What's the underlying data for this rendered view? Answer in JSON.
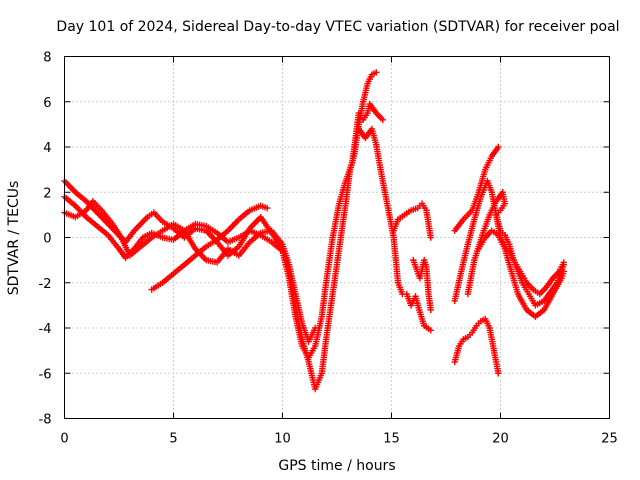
{
  "chart_data": {
    "type": "scatter",
    "title": "Day 101 of 2024, Sidereal Day-to-day VTEC variation (SDTVAR) for receiver poal",
    "xlabel": "GPS time / hours",
    "ylabel": "SDTVAR / TECUs",
    "xlim": [
      0,
      25
    ],
    "ylim": [
      -8,
      8
    ],
    "xticks": [
      0,
      5,
      10,
      15,
      20,
      25
    ],
    "yticks": [
      -8,
      -6,
      -4,
      -2,
      0,
      2,
      4,
      6,
      8
    ],
    "grid": true,
    "marker": "+",
    "color": "#ff0000",
    "series": [
      {
        "name": "trace-1",
        "points": [
          [
            0,
            2.5
          ],
          [
            0.5,
            2.0
          ],
          [
            1.0,
            1.6
          ],
          [
            1.5,
            1.1
          ],
          [
            2.0,
            0.6
          ],
          [
            2.5,
            0.1
          ],
          [
            2.8,
            -0.2
          ],
          [
            3.2,
            0.3
          ],
          [
            3.8,
            0.9
          ],
          [
            4.1,
            1.1
          ],
          [
            4.5,
            0.7
          ],
          [
            5.0,
            0.4
          ],
          [
            5.5,
            0.0
          ],
          [
            6.0,
            0.4
          ],
          [
            6.5,
            0.3
          ],
          [
            7.0,
            -0.2
          ],
          [
            7.5,
            -0.8
          ],
          [
            8.0,
            -0.4
          ],
          [
            8.5,
            0.4
          ],
          [
            9.0,
            0.9
          ],
          [
            9.5,
            0.2
          ],
          [
            10.0,
            -0.5
          ],
          [
            10.3,
            -1.5
          ],
          [
            10.6,
            -3.0
          ],
          [
            10.9,
            -4.5
          ],
          [
            11.2,
            -5.5
          ],
          [
            11.5,
            -6.7
          ],
          [
            11.8,
            -6.0
          ],
          [
            12.0,
            -4.5
          ],
          [
            12.3,
            -2.5
          ],
          [
            12.6,
            -0.5
          ],
          [
            12.9,
            1.5
          ],
          [
            13.1,
            3.0
          ],
          [
            13.3,
            3.7
          ],
          [
            13.5,
            5.0
          ],
          [
            13.7,
            6.0
          ],
          [
            13.9,
            6.8
          ],
          [
            14.1,
            7.2
          ],
          [
            14.3,
            7.3
          ]
        ]
      },
      {
        "name": "trace-2",
        "points": [
          [
            0,
            1.8
          ],
          [
            0.5,
            1.4
          ],
          [
            1.0,
            0.9
          ],
          [
            1.5,
            0.5
          ],
          [
            2.0,
            0.1
          ],
          [
            2.5,
            -0.5
          ],
          [
            2.8,
            -0.9
          ],
          [
            3.2,
            -0.5
          ],
          [
            3.6,
            0.0
          ],
          [
            4.0,
            0.2
          ],
          [
            4.5,
            0.0
          ],
          [
            5.0,
            -0.1
          ],
          [
            5.5,
            0.3
          ],
          [
            6.0,
            0.6
          ],
          [
            6.5,
            0.5
          ],
          [
            7.0,
            0.2
          ],
          [
            7.5,
            -0.2
          ],
          [
            8.0,
            0.0
          ],
          [
            8.5,
            0.3
          ],
          [
            9.0,
            0.1
          ],
          [
            9.5,
            -0.2
          ],
          [
            10.0,
            -0.6
          ],
          [
            10.3,
            -1.8
          ],
          [
            10.6,
            -3.5
          ],
          [
            10.9,
            -4.8
          ],
          [
            11.2,
            -5.3
          ],
          [
            11.5,
            -4.8
          ],
          [
            11.8,
            -3.5
          ],
          [
            12.0,
            -2.0
          ],
          [
            12.3,
            0.0
          ],
          [
            12.6,
            1.5
          ],
          [
            12.9,
            2.5
          ],
          [
            13.2,
            3.3
          ],
          [
            13.5,
            5.5
          ],
          [
            13.7,
            5.2
          ],
          [
            13.9,
            5.5
          ],
          [
            14.0,
            5.9
          ],
          [
            14.3,
            5.5
          ],
          [
            14.6,
            5.2
          ]
        ]
      },
      {
        "name": "trace-3",
        "points": [
          [
            0,
            1.1
          ],
          [
            0.5,
            0.9
          ],
          [
            1.0,
            1.2
          ],
          [
            1.3,
            1.6
          ],
          [
            1.7,
            1.2
          ],
          [
            2.2,
            0.6
          ],
          [
            2.6,
            0.0
          ],
          [
            3.0,
            -0.8
          ],
          [
            3.5,
            -0.4
          ],
          [
            4.0,
            0.0
          ],
          [
            4.5,
            0.3
          ],
          [
            5.0,
            0.6
          ],
          [
            5.5,
            0.3
          ],
          [
            6.0,
            -0.5
          ],
          [
            6.5,
            -1.0
          ],
          [
            7.0,
            -1.1
          ],
          [
            7.5,
            -0.5
          ],
          [
            8.0,
            -0.8
          ],
          [
            8.5,
            -0.2
          ],
          [
            9.0,
            0.2
          ],
          [
            9.5,
            0.3
          ],
          [
            10.0,
            -0.3
          ],
          [
            10.3,
            -1.2
          ],
          [
            10.6,
            -2.5
          ],
          [
            10.9,
            -3.8
          ],
          [
            11.2,
            -4.6
          ],
          [
            11.5,
            -4.0
          ]
        ]
      },
      {
        "name": "trace-4",
        "points": [
          [
            4.0,
            -2.3
          ],
          [
            4.5,
            -2.0
          ],
          [
            5.0,
            -1.6
          ],
          [
            5.5,
            -1.2
          ],
          [
            6.0,
            -0.8
          ],
          [
            6.5,
            -0.4
          ],
          [
            7.0,
            -0.1
          ],
          [
            7.5,
            0.3
          ],
          [
            8.0,
            0.8
          ],
          [
            8.5,
            1.2
          ],
          [
            9.0,
            1.4
          ],
          [
            9.3,
            1.3
          ]
        ]
      },
      {
        "name": "trace-5",
        "points": [
          [
            13.5,
            4.8
          ],
          [
            13.8,
            4.4
          ],
          [
            14.1,
            4.8
          ],
          [
            14.3,
            4.1
          ],
          [
            14.5,
            3.0
          ],
          [
            14.7,
            2.0
          ],
          [
            14.9,
            1.0
          ],
          [
            15.1,
            0.0
          ],
          [
            15.2,
            -1.0
          ],
          [
            15.3,
            -2.0
          ],
          [
            15.5,
            -2.5
          ],
          [
            15.7,
            -2.5
          ],
          [
            15.9,
            -3.0
          ],
          [
            16.1,
            -2.6
          ],
          [
            16.3,
            -3.3
          ],
          [
            16.5,
            -3.9
          ],
          [
            16.8,
            -4.1
          ]
        ]
      },
      {
        "name": "trace-6",
        "points": [
          [
            15.1,
            0.3
          ],
          [
            15.3,
            0.8
          ],
          [
            15.6,
            1.0
          ],
          [
            15.9,
            1.2
          ],
          [
            16.2,
            1.3
          ],
          [
            16.4,
            1.5
          ],
          [
            16.6,
            1.2
          ],
          [
            16.8,
            0.0
          ]
        ]
      },
      {
        "name": "trace-7",
        "points": [
          [
            16.0,
            -1.0
          ],
          [
            16.3,
            -1.8
          ],
          [
            16.5,
            -1.0
          ],
          [
            16.6,
            -1.3
          ],
          [
            16.7,
            -2.5
          ],
          [
            16.8,
            -3.2
          ]
        ]
      },
      {
        "name": "trace-8",
        "points": [
          [
            17.9,
            0.3
          ],
          [
            18.3,
            0.8
          ],
          [
            18.7,
            1.2
          ],
          [
            19.0,
            2.0
          ],
          [
            19.3,
            3.0
          ],
          [
            19.6,
            3.6
          ],
          [
            19.9,
            4.0
          ]
        ]
      },
      {
        "name": "trace-9",
        "points": [
          [
            17.9,
            -2.8
          ],
          [
            18.2,
            -1.5
          ],
          [
            18.5,
            -0.3
          ],
          [
            18.8,
            0.8
          ],
          [
            19.1,
            1.8
          ],
          [
            19.4,
            2.5
          ],
          [
            19.6,
            2.0
          ],
          [
            19.8,
            1.0
          ],
          [
            20.0,
            0.3
          ],
          [
            20.2,
            0.1
          ],
          [
            20.4,
            -0.3
          ],
          [
            20.6,
            -1.0
          ],
          [
            20.8,
            -1.5
          ],
          [
            21.0,
            -2.0
          ],
          [
            21.3,
            -2.5
          ],
          [
            21.6,
            -3.0
          ],
          [
            22.0,
            -2.8
          ],
          [
            22.3,
            -2.4
          ],
          [
            22.6,
            -2.0
          ],
          [
            22.9,
            -1.2
          ]
        ]
      },
      {
        "name": "trace-10",
        "points": [
          [
            17.9,
            -5.5
          ],
          [
            18.1,
            -4.8
          ],
          [
            18.3,
            -4.5
          ],
          [
            18.5,
            -4.4
          ],
          [
            18.7,
            -4.2
          ],
          [
            18.9,
            -3.9
          ],
          [
            19.1,
            -3.7
          ],
          [
            19.3,
            -3.6
          ],
          [
            19.5,
            -4.0
          ],
          [
            19.7,
            -5.0
          ],
          [
            19.9,
            -6.0
          ]
        ]
      },
      {
        "name": "trace-11",
        "points": [
          [
            18.5,
            -2.5
          ],
          [
            18.8,
            -1.0
          ],
          [
            19.2,
            0.2
          ],
          [
            19.5,
            1.0
          ],
          [
            19.8,
            1.6
          ],
          [
            20.1,
            2.0
          ],
          [
            20.2,
            1.5
          ],
          [
            20.0,
            1.2
          ],
          [
            19.8,
            1.0
          ],
          [
            20.0,
            0.0
          ],
          [
            20.3,
            -0.5
          ],
          [
            20.6,
            -1.0
          ],
          [
            20.9,
            -1.5
          ],
          [
            21.2,
            -2.0
          ],
          [
            21.5,
            -2.3
          ],
          [
            21.8,
            -2.5
          ],
          [
            22.1,
            -2.2
          ],
          [
            22.4,
            -1.8
          ],
          [
            22.7,
            -1.5
          ],
          [
            22.9,
            -1.1
          ]
        ]
      },
      {
        "name": "trace-12",
        "points": [
          [
            19.0,
            -0.5
          ],
          [
            19.3,
            0.0
          ],
          [
            19.6,
            0.3
          ],
          [
            19.9,
            0.1
          ],
          [
            20.2,
            -0.5
          ],
          [
            20.5,
            -1.5
          ],
          [
            20.8,
            -2.5
          ],
          [
            21.2,
            -3.2
          ],
          [
            21.6,
            -3.5
          ],
          [
            22.0,
            -3.2
          ],
          [
            22.4,
            -2.5
          ],
          [
            22.8,
            -1.8
          ],
          [
            22.9,
            -1.5
          ]
        ]
      }
    ]
  }
}
